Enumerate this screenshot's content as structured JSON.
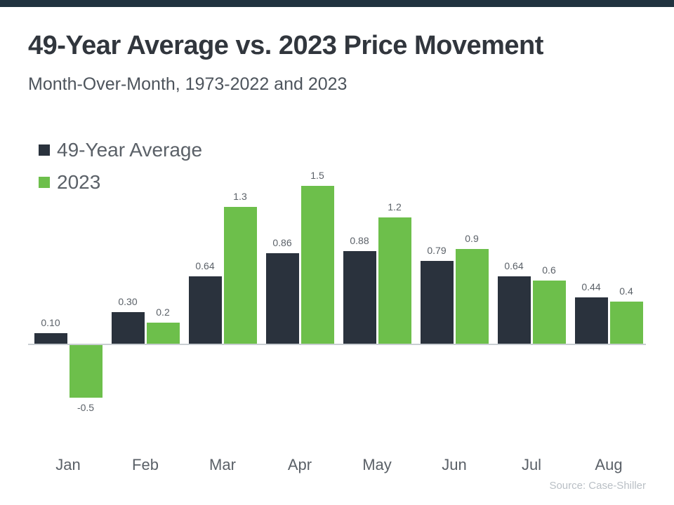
{
  "header": {
    "title": "49-Year Average vs. 2023 Price Movement",
    "subtitle": "Month-Over-Month, 1973-2022 and 2023"
  },
  "footer": {
    "source": "Source: Case-Shiller"
  },
  "colors": {
    "accent_strip": "#20333f",
    "series_average": "#2a323d",
    "series_2023": "#6dbf4b",
    "axis_line": "#c9ced2"
  },
  "chart_data": {
    "type": "bar",
    "title": "49-Year Average vs. 2023 Price Movement",
    "subtitle": "Month-Over-Month, 1973-2022 and 2023",
    "categories": [
      "Jan",
      "Feb",
      "Mar",
      "Apr",
      "May",
      "Jun",
      "Jul",
      "Aug"
    ],
    "series": [
      {
        "name": "49-Year Average",
        "color": "#2a323d",
        "values": [
          0.1,
          0.3,
          0.64,
          0.86,
          0.88,
          0.79,
          0.64,
          0.44
        ],
        "labels": [
          "0.10",
          "0.30",
          "0.64",
          "0.86",
          "0.88",
          "0.79",
          "0.64",
          "0.44"
        ]
      },
      {
        "name": "2023",
        "color": "#6dbf4b",
        "values": [
          -0.5,
          0.2,
          1.3,
          1.5,
          1.2,
          0.9,
          0.6,
          0.4
        ],
        "labels": [
          "-0.5",
          "0.2",
          "1.3",
          "1.5",
          "1.2",
          "0.9",
          "0.6",
          "0.4"
        ]
      }
    ],
    "xlabel": "",
    "ylabel": "",
    "ylim": [
      -0.7,
      1.7
    ],
    "grid": false,
    "legend_position": "top-left",
    "value_labels_shown": true,
    "axes_shown": {
      "x_baseline": true,
      "y_axis": false
    }
  }
}
